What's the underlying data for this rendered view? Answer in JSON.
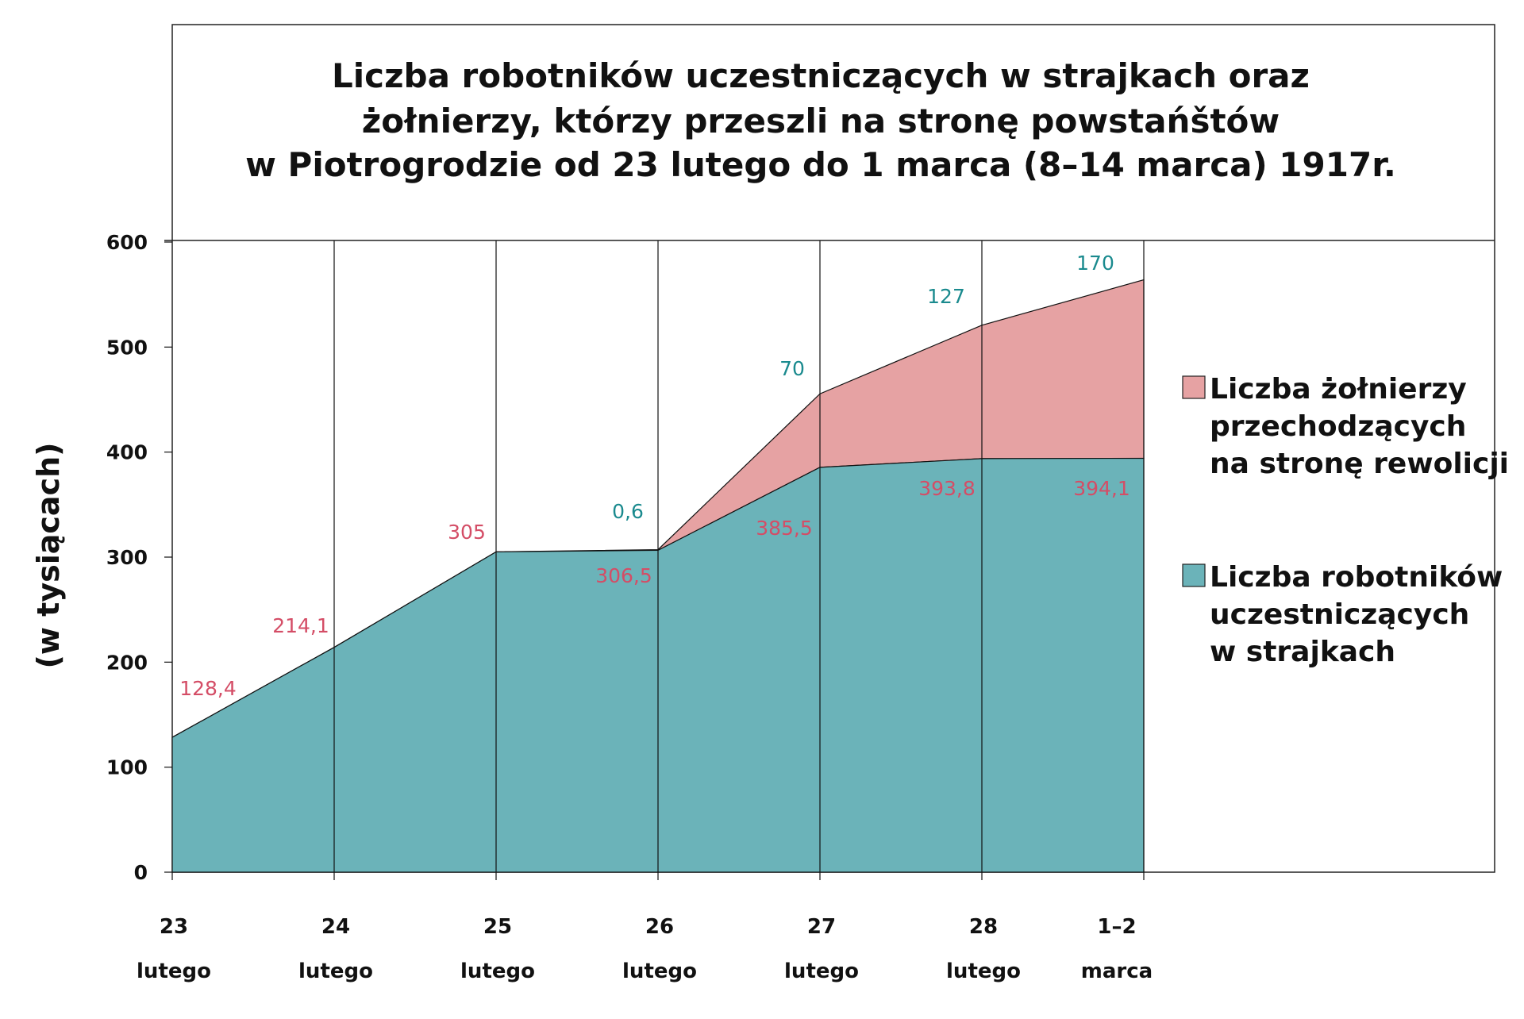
{
  "chart_data": {
    "type": "area",
    "stacked": true,
    "title_lines": [
      "Liczba robotników uczestniczących w strajkach oraz",
      "żołnierzy, którzy przeszli na stronę powstańštów",
      "w Piotrogrodzie od 23 lutego do 1 marca (8–14 marca) 1917r."
    ],
    "ylabel": "(w tysiącach)",
    "ylim": [
      0,
      600
    ],
    "yticks": [
      "0",
      "100",
      "200",
      "300",
      "400",
      "500",
      "600"
    ],
    "categories": [
      {
        "day": "23",
        "month": "lutego"
      },
      {
        "day": "24",
        "month": "lutego"
      },
      {
        "day": "25",
        "month": "lutego"
      },
      {
        "day": "26",
        "month": "lutego"
      },
      {
        "day": "27",
        "month": "lutego"
      },
      {
        "day": "28",
        "month": "lutego"
      },
      {
        "day": "1–2",
        "month": "marca"
      }
    ],
    "series": [
      {
        "name": "Liczba robotników uczestniczących w strajkach",
        "legend_lines": [
          "Liczba robotników",
          "uczestniczących",
          "w strajkach"
        ],
        "color": "#6bb3b9",
        "label_color": "#d44d66",
        "values": [
          128.4,
          214.1,
          305,
          306.5,
          385.5,
          393.8,
          394.1
        ],
        "labels": [
          "128,4",
          "214,1",
          "305",
          "306,5",
          "385,5",
          "393,8",
          "394,1"
        ]
      },
      {
        "name": "Liczba żołnierzy przechodzących na stronę rewolicji",
        "legend_lines": [
          "Liczba żołnierzy",
          "przechodzących",
          "na stronę rewolicji"
        ],
        "color": "#e6a2a3",
        "label_color": "#1a8a8e",
        "values": [
          0,
          0,
          0,
          0.6,
          70,
          127,
          170
        ],
        "labels": [
          null,
          null,
          null,
          "0,6",
          "70",
          "127",
          "170"
        ]
      }
    ],
    "grid": "vertical",
    "legend_position": "right"
  }
}
